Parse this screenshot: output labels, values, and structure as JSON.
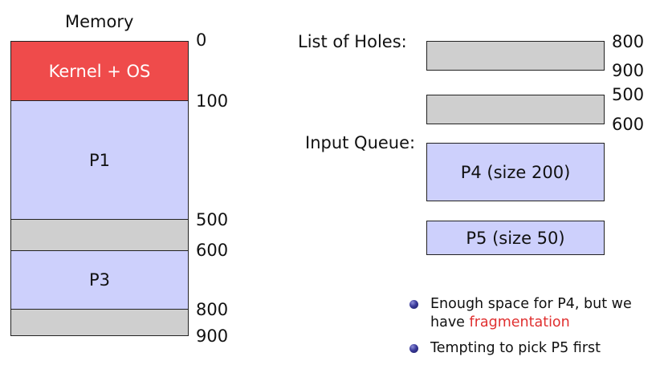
{
  "memory": {
    "title": "Memory",
    "segments": {
      "kernel": "Kernel + OS",
      "p1": "P1",
      "p3": "P3"
    },
    "addresses": [
      "0",
      "100",
      "500",
      "600",
      "800",
      "900"
    ]
  },
  "holes": {
    "label": "List of Holes:",
    "items": [
      {
        "start": "800",
        "end": "900"
      },
      {
        "start": "500",
        "end": "600"
      }
    ]
  },
  "queue": {
    "label": "Input Queue:",
    "items": [
      "P4 (size 200)",
      "P5 (size 50)"
    ]
  },
  "notes": {
    "b1_text": "Enough space for P4, but we have",
    "b1_highlight": "fragmentation",
    "b2_text": "Tempting to pick P5 first"
  },
  "colors": {
    "kernel": "#ef4b4b",
    "process": "#cdd0fc",
    "hole": "#cfcfcf",
    "highlight": "#e03030"
  }
}
